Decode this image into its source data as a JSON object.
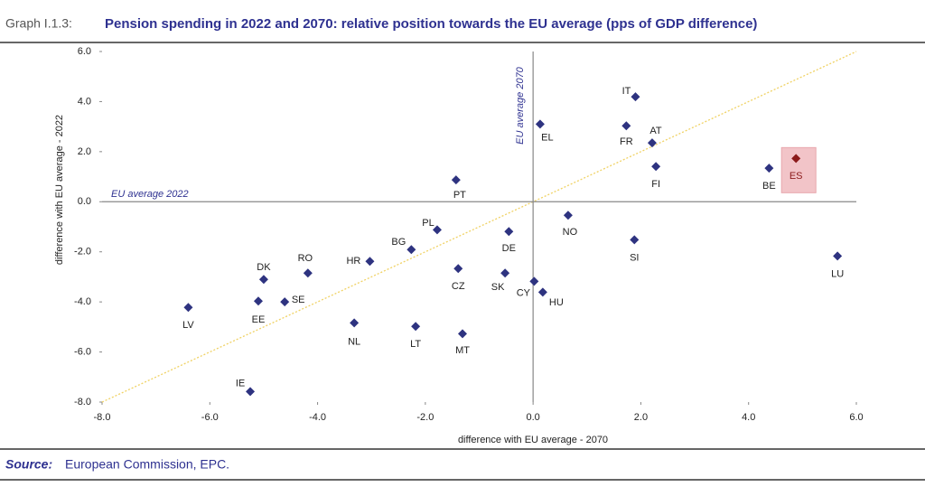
{
  "chart_data": {
    "type": "scatter",
    "label": "Graph I.1.3:",
    "title": "Pension spending in 2022 and 2070: relative position towards the EU average (pps of GDP difference)",
    "x_label": "difference with EU average - 2070",
    "y_label": "difference with EU average - 2022",
    "source_label": "Source:",
    "source": "European Commission, EPC.",
    "labels": [
      "IT",
      "EL",
      "FR",
      "AT",
      "ES",
      "BE",
      "FI",
      "PT",
      "NO",
      "PL",
      "DE",
      "SI",
      "BG",
      "LU",
      "RO",
      "HR",
      "DK",
      "CZ",
      "SK",
      "CY",
      "HU",
      "SE",
      "EE",
      "LV",
      "NL",
      "LT",
      "MT",
      "IE"
    ],
    "x": [
      1.9,
      0.13,
      1.73,
      2.21,
      4.88,
      4.38,
      2.28,
      -1.43,
      0.65,
      -1.78,
      -0.45,
      1.88,
      -2.26,
      5.65,
      -4.18,
      -3.03,
      -5.0,
      -1.39,
      -0.52,
      0.02,
      0.18,
      -4.61,
      -5.1,
      -6.4,
      -3.32,
      -2.18,
      -1.31,
      -5.25
    ],
    "y": [
      4.19,
      3.1,
      3.03,
      2.35,
      1.73,
      1.34,
      1.41,
      0.87,
      -0.54,
      -1.12,
      -1.19,
      -1.52,
      -1.91,
      -2.17,
      -2.85,
      -2.38,
      -3.1,
      -2.67,
      -2.85,
      -3.18,
      -3.61,
      -4.0,
      -3.97,
      -4.22,
      -4.84,
      -4.98,
      -5.27,
      -7.58
    ],
    "color": "#2e3380",
    "point_colors": [
      "#2e3380",
      "#2e3380",
      "#2e3380",
      "#2e3380",
      "#8b1a1a",
      "#2e3380",
      "#2e3380",
      "#2e3380",
      "#2e3380",
      "#2e3380",
      "#2e3380",
      "#2e3380",
      "#2e3380",
      "#2e3380",
      "#2e3380",
      "#2e3380",
      "#2e3380",
      "#2e3380",
      "#2e3380",
      "#2e3380",
      "#2e3380",
      "#2e3380",
      "#2e3380",
      "#2e3380",
      "#2e3380",
      "#2e3380",
      "#2e3380",
      "#2e3380"
    ],
    "xlim": [
      -8,
      6
    ],
    "ylim": [
      -8,
      6
    ],
    "xticks": [
      {
        "value": -8,
        "label": "-8.0"
      },
      {
        "value": -6,
        "label": "-6.0"
      },
      {
        "value": -4,
        "label": "-4.0"
      },
      {
        "value": -2,
        "label": "-2.0"
      },
      {
        "value": 0,
        "label": "0.0"
      },
      {
        "value": 2,
        "label": "2.0"
      },
      {
        "value": 4,
        "label": "4.0"
      },
      {
        "value": 6,
        "label": "6.0"
      }
    ],
    "yticks": [
      {
        "value": -8,
        "label": "-8.0"
      },
      {
        "value": -6,
        "label": "-6.0"
      },
      {
        "value": -4,
        "label": "-4.0"
      },
      {
        "value": -2,
        "label": "-2.0"
      },
      {
        "value": 0,
        "label": "0.0"
      },
      {
        "value": 2,
        "label": "2.0"
      },
      {
        "value": 4,
        "label": "4.0"
      },
      {
        "value": 6,
        "label": "6.0"
      }
    ],
    "hline": {
      "value": 0,
      "label": "EU average 2022"
    },
    "vline": {
      "value": 0,
      "label": "EU average 2070"
    },
    "diagonal_color": "#f0d264"
  }
}
